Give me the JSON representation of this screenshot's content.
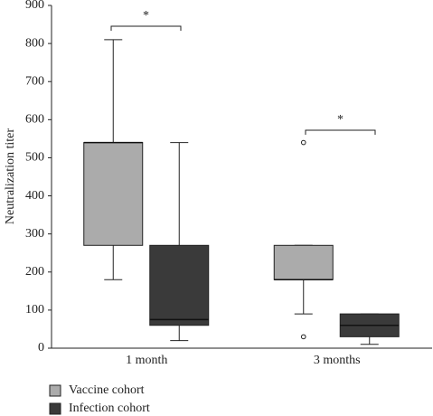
{
  "chart_data": {
    "type": "box",
    "y_label": "Neutralization titer",
    "categories": [
      "1 month",
      "3 months"
    ],
    "ylim": [
      0,
      900
    ],
    "yticks": [
      0,
      100,
      200,
      300,
      400,
      500,
      600,
      700,
      800,
      900
    ],
    "series": [
      {
        "name": "Vaccine cohort",
        "color": "#ababab",
        "min": [
          180,
          90
        ],
        "q1": [
          270,
          180
        ],
        "median": [
          540,
          180
        ],
        "q3": [
          540,
          270
        ],
        "max": [
          810,
          270
        ],
        "outliers": [
          [],
          [
            540,
            30
          ]
        ]
      },
      {
        "name": "Infection cohort",
        "color": "#3a3a3a",
        "min": [
          20,
          10
        ],
        "q1": [
          60,
          30
        ],
        "median": [
          75,
          60
        ],
        "q3": [
          270,
          90
        ],
        "max": [
          540,
          90
        ],
        "outliers": [
          [],
          []
        ]
      }
    ],
    "annotations": [
      "*",
      "*"
    ],
    "legend": "bottom-left"
  }
}
